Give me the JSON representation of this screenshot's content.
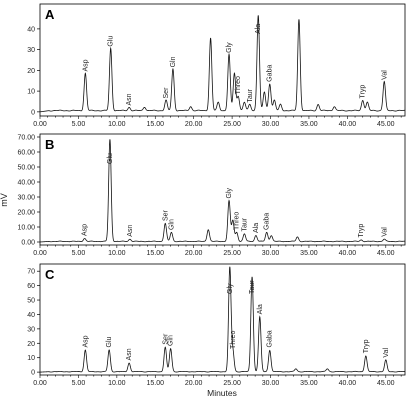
{
  "figure": {
    "xlabel": "Minutes",
    "ylabel": "mV"
  },
  "chart_data": [
    {
      "type": "line",
      "panel_label": "A",
      "xlim": [
        0,
        47.5
      ],
      "ylim": [
        -2,
        52
      ],
      "xticks": [
        "0.00",
        "5.00",
        "10.00",
        "15.00",
        "20.00",
        "25.00",
        "30.00",
        "35.00",
        "40.00",
        "45.00"
      ],
      "xtick_values": [
        0,
        5,
        10,
        15,
        20,
        25,
        30,
        35,
        40,
        45
      ],
      "yticks": [
        "0",
        "10",
        "20",
        "30",
        "40"
      ],
      "ytick_values": [
        0,
        10,
        20,
        30,
        40
      ],
      "baseline": 0.6,
      "peaks": [
        {
          "t": 5.9,
          "h": 18
        },
        {
          "t": 9.2,
          "h": 30
        },
        {
          "t": 11.6,
          "h": 1.6
        },
        {
          "t": 13.6,
          "h": 1.8
        },
        {
          "t": 16.4,
          "h": 5
        },
        {
          "t": 17.3,
          "h": 20
        },
        {
          "t": 19.6,
          "h": 2
        },
        {
          "t": 22.2,
          "h": 35
        },
        {
          "t": 23.2,
          "h": 4
        },
        {
          "t": 24.6,
          "h": 27
        },
        {
          "t": 25.3,
          "h": 18
        },
        {
          "t": 25.8,
          "h": 7
        },
        {
          "t": 26.6,
          "h": 4
        },
        {
          "t": 27.3,
          "h": 3
        },
        {
          "t": 28.4,
          "h": 46
        },
        {
          "t": 29.2,
          "h": 9
        },
        {
          "t": 29.9,
          "h": 13
        },
        {
          "t": 30.5,
          "h": 5
        },
        {
          "t": 31.3,
          "h": 3
        },
        {
          "t": 33.7,
          "h": 44
        },
        {
          "t": 36.2,
          "h": 3
        },
        {
          "t": 38.3,
          "h": 2
        },
        {
          "t": 42.0,
          "h": 5
        },
        {
          "t": 42.6,
          "h": 4
        },
        {
          "t": 44.8,
          "h": 14
        }
      ],
      "annotations": [
        {
          "text": "Asp",
          "t": 5.9,
          "h": 18
        },
        {
          "text": "Glu",
          "t": 9.2,
          "h": 30
        },
        {
          "text": "Asn",
          "t": 11.6,
          "h": 1.6
        },
        {
          "text": "Ser",
          "t": 16.4,
          "h": 5
        },
        {
          "text": "Gln",
          "t": 17.3,
          "h": 20
        },
        {
          "text": "Gly",
          "t": 24.6,
          "h": 27
        },
        {
          "text": "Threo",
          "t": 25.8,
          "h": 7
        },
        {
          "text": "Taur",
          "t": 27.3,
          "h": 3
        },
        {
          "text": "Ala",
          "t": 28.4,
          "h": 46
        },
        {
          "text": "Gaba",
          "t": 29.9,
          "h": 13
        },
        {
          "text": "Tryp",
          "t": 42.0,
          "h": 5
        },
        {
          "text": "Val",
          "t": 44.8,
          "h": 14
        }
      ]
    },
    {
      "type": "line",
      "panel_label": "B",
      "xlim": [
        0,
        47.5
      ],
      "ylim": [
        -2,
        72
      ],
      "xticks": [
        "0.00",
        "5.00",
        "10.00",
        "15.00",
        "20.00",
        "25.00",
        "30.00",
        "35.00",
        "40.00",
        "45.00"
      ],
      "xtick_values": [
        0,
        5,
        10,
        15,
        20,
        25,
        30,
        35,
        40,
        45
      ],
      "yticks": [
        "0.00",
        "10.00",
        "20.00",
        "30.00",
        "40.00",
        "50.00",
        "60.00",
        "70.00"
      ],
      "ytick_values": [
        0,
        10,
        20,
        30,
        40,
        50,
        60,
        70
      ],
      "baseline": 0.4,
      "peaks": [
        {
          "t": 5.8,
          "h": 2
        },
        {
          "t": 9.1,
          "h": 68
        },
        {
          "t": 11.7,
          "h": 1.5
        },
        {
          "t": 16.3,
          "h": 12
        },
        {
          "t": 17.1,
          "h": 6
        },
        {
          "t": 21.9,
          "h": 8
        },
        {
          "t": 24.6,
          "h": 27
        },
        {
          "t": 25.1,
          "h": 14
        },
        {
          "t": 25.6,
          "h": 6
        },
        {
          "t": 26.6,
          "h": 5
        },
        {
          "t": 28.1,
          "h": 4
        },
        {
          "t": 29.5,
          "h": 6
        },
        {
          "t": 30.1,
          "h": 4
        },
        {
          "t": 33.5,
          "h": 3
        },
        {
          "t": 41.8,
          "h": 1
        },
        {
          "t": 44.8,
          "h": 1.5
        }
      ],
      "annotations": [
        {
          "text": "Asp",
          "t": 5.8,
          "h": 2
        },
        {
          "text": "Glu",
          "t": 9.1,
          "h": 68
        },
        {
          "text": "Asn",
          "t": 11.7,
          "h": 1.5
        },
        {
          "text": "Ser",
          "t": 16.3,
          "h": 12
        },
        {
          "text": "Gln",
          "t": 17.1,
          "h": 6
        },
        {
          "text": "Gly",
          "t": 24.6,
          "h": 27
        },
        {
          "text": "Threo",
          "t": 25.6,
          "h": 6
        },
        {
          "text": "Taur",
          "t": 26.6,
          "h": 5
        },
        {
          "text": "Ala",
          "t": 28.1,
          "h": 4
        },
        {
          "text": "Gaba",
          "t": 29.5,
          "h": 6
        },
        {
          "text": "Tryp",
          "t": 41.8,
          "h": 1
        },
        {
          "text": "Val",
          "t": 44.8,
          "h": 1.5
        }
      ]
    },
    {
      "type": "line",
      "panel_label": "C",
      "xlim": [
        0,
        47.5
      ],
      "ylim": [
        -2,
        75
      ],
      "xticks": [
        "0.00",
        "5.00",
        "10.00",
        "15.00",
        "20.00",
        "25.00",
        "30.00",
        "35.00",
        "40.00",
        "45.00"
      ],
      "xtick_values": [
        0,
        5,
        10,
        15,
        20,
        25,
        30,
        35,
        40,
        45
      ],
      "yticks": [
        "0",
        "10",
        "20",
        "30",
        "40",
        "50",
        "60",
        "70"
      ],
      "ytick_values": [
        0,
        10,
        20,
        30,
        40,
        50,
        60,
        70
      ],
      "baseline": 0.3,
      "peaks": [
        {
          "t": 5.9,
          "h": 15
        },
        {
          "t": 9.0,
          "h": 15
        },
        {
          "t": 11.6,
          "h": 6
        },
        {
          "t": 16.3,
          "h": 17
        },
        {
          "t": 17.0,
          "h": 16
        },
        {
          "t": 24.7,
          "h": 72
        },
        {
          "t": 25.1,
          "h": 14
        },
        {
          "t": 27.6,
          "h": 66
        },
        {
          "t": 28.6,
          "h": 38
        },
        {
          "t": 29.9,
          "h": 15
        },
        {
          "t": 33.3,
          "h": 2
        },
        {
          "t": 37.4,
          "h": 2
        },
        {
          "t": 42.4,
          "h": 11
        },
        {
          "t": 45.0,
          "h": 8
        }
      ],
      "annotations": [
        {
          "text": "Asp",
          "t": 5.9,
          "h": 15
        },
        {
          "text": "Glu",
          "t": 9.0,
          "h": 15
        },
        {
          "text": "Asn",
          "t": 11.6,
          "h": 6
        },
        {
          "text": "Ser",
          "t": 16.3,
          "h": 17
        },
        {
          "text": "Gln",
          "t": 17.0,
          "h": 16
        },
        {
          "text": "Gly",
          "t": 24.7,
          "h": 72
        },
        {
          "text": "Threo",
          "t": 25.1,
          "h": 14
        },
        {
          "text": "Taur",
          "t": 27.6,
          "h": 66
        },
        {
          "text": "Ala",
          "t": 28.6,
          "h": 38
        },
        {
          "text": "Gaba",
          "t": 29.9,
          "h": 15
        },
        {
          "text": "Tryp",
          "t": 42.4,
          "h": 11
        },
        {
          "text": "Val",
          "t": 45.0,
          "h": 8
        }
      ]
    }
  ]
}
